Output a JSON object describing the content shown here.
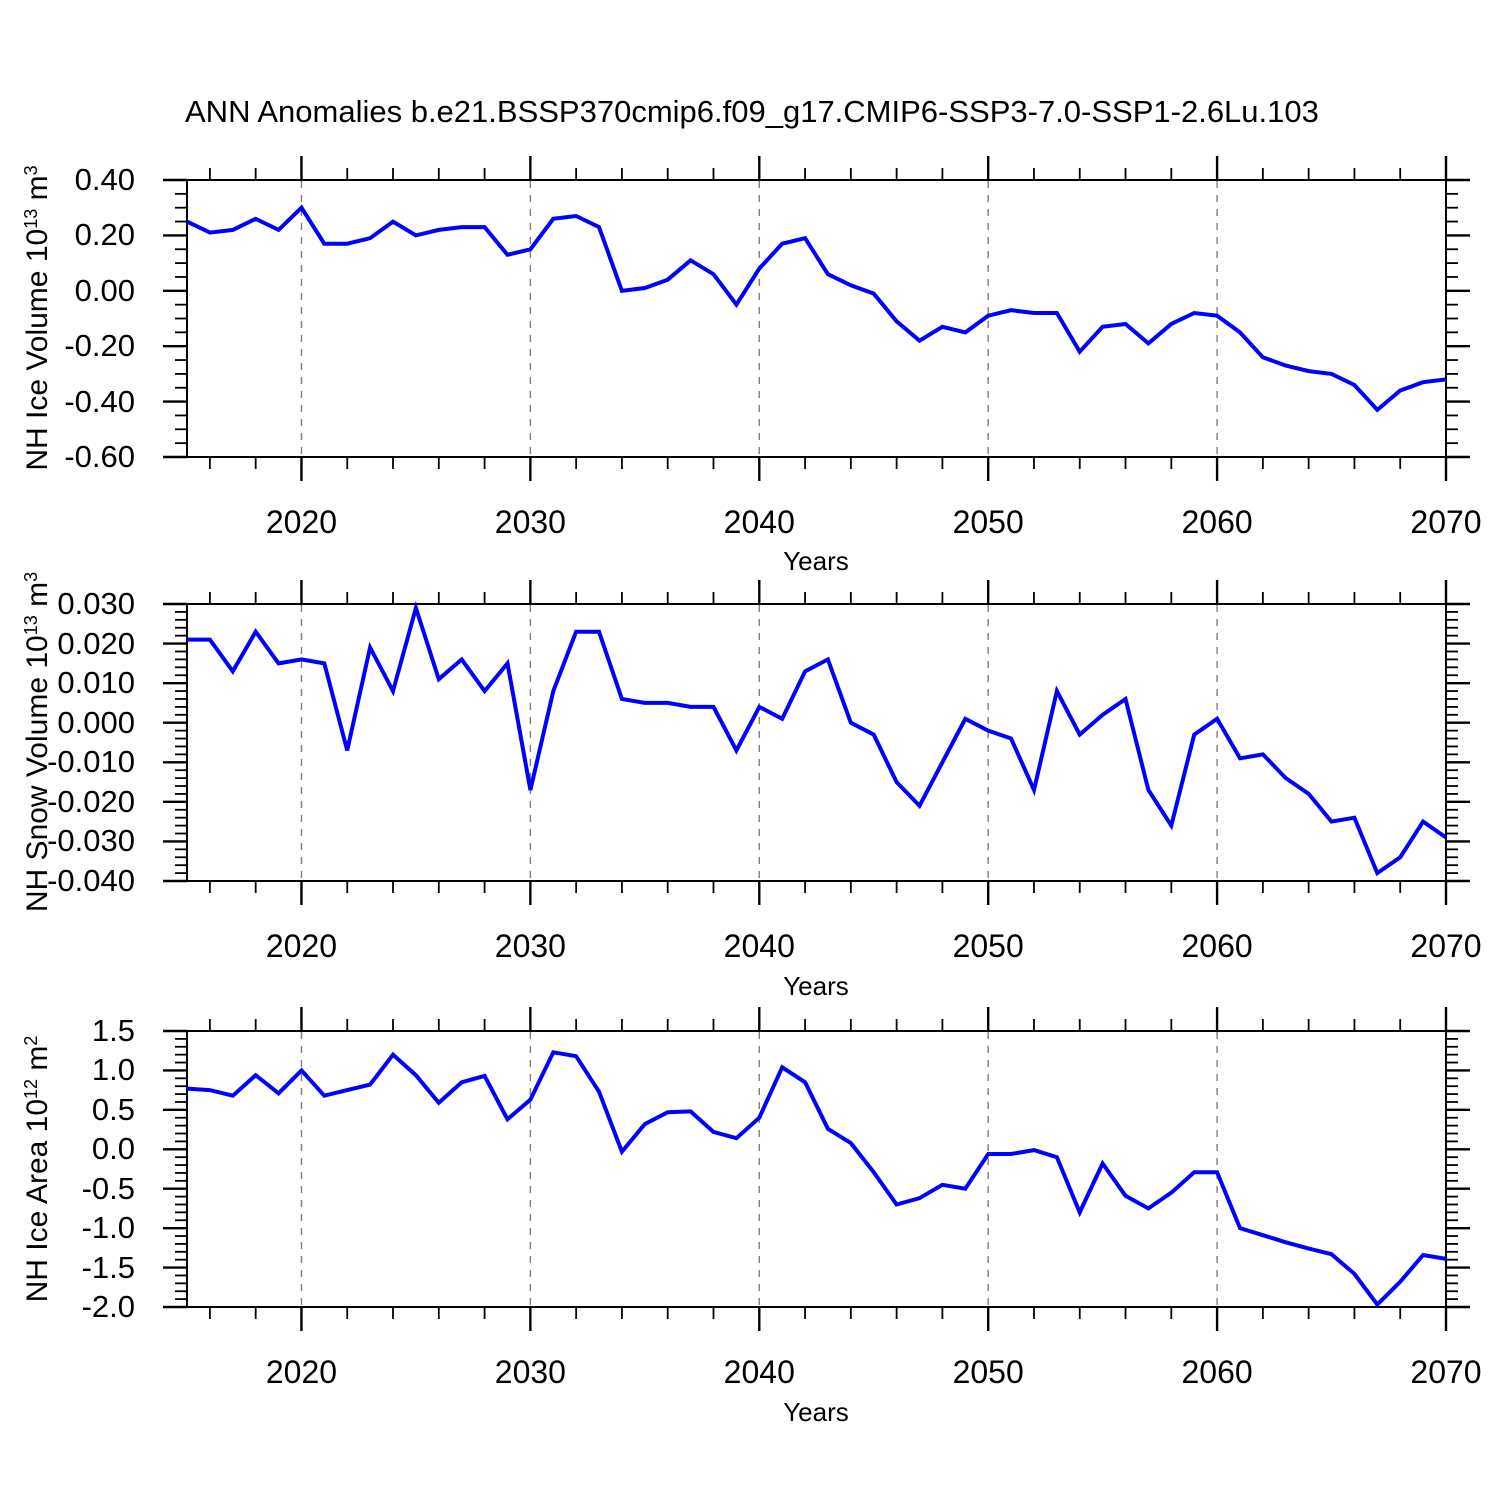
{
  "title": "ANN Anomalies b.e21.BSSP370cmip6.f09_g17.CMIP6-SSP3-7.0-SSP1-2.6Lu.103",
  "line_color": "#0000FF",
  "grid_color": "#7f7f7f",
  "axis_color": "#000000",
  "x_axis": {
    "label": "Years",
    "start": 2015,
    "end": 2070,
    "major_ticks": [
      2020,
      2030,
      2040,
      2050,
      2060,
      2070
    ],
    "minor_step_years": 2,
    "gridline_years": [
      2020,
      2030,
      2040,
      2050,
      2060
    ],
    "years": [
      2015,
      2016,
      2017,
      2018,
      2019,
      2020,
      2021,
      2022,
      2023,
      2024,
      2025,
      2026,
      2027,
      2028,
      2029,
      2030,
      2031,
      2032,
      2033,
      2034,
      2035,
      2036,
      2037,
      2038,
      2039,
      2040,
      2041,
      2042,
      2043,
      2044,
      2045,
      2046,
      2047,
      2048,
      2049,
      2050,
      2051,
      2052,
      2053,
      2054,
      2055,
      2056,
      2057,
      2058,
      2059,
      2060,
      2061,
      2062,
      2063,
      2064,
      2065,
      2066,
      2067,
      2068,
      2069,
      2070
    ]
  },
  "chart_data": [
    {
      "type": "line",
      "panel": "nh-ice-volume",
      "ylabel": {
        "name": "NH Ice Volume",
        "base": "10",
        "exp": "13",
        "unit": "m",
        "unit_exp": "3"
      },
      "ymax": 0.4,
      "ymin": -0.6,
      "ytick_step": 0.2,
      "yminor_step": 0.05,
      "ytick_labels": [
        "0.40",
        "0.20",
        "0.00",
        "-0.20",
        "-0.40",
        "-0.60"
      ],
      "values": [
        0.25,
        0.21,
        0.22,
        0.26,
        0.22,
        0.3,
        0.17,
        0.17,
        0.19,
        0.25,
        0.2,
        0.22,
        0.23,
        0.23,
        0.13,
        0.15,
        0.26,
        0.27,
        0.23,
        0.0,
        0.01,
        0.04,
        0.11,
        0.06,
        -0.05,
        0.08,
        0.17,
        0.19,
        0.06,
        0.02,
        -0.01,
        -0.11,
        -0.18,
        -0.13,
        -0.15,
        -0.09,
        -0.07,
        -0.08,
        -0.08,
        -0.22,
        -0.13,
        -0.12,
        -0.19,
        -0.12,
        -0.08,
        -0.09,
        -0.15,
        -0.24,
        -0.27,
        -0.29,
        -0.3,
        -0.34,
        -0.43,
        -0.36,
        -0.33,
        -0.32
      ]
    },
    {
      "type": "line",
      "panel": "nh-snow-volume",
      "ylabel": {
        "name": "NH Snow Volume",
        "base": "10",
        "exp": "13",
        "unit": "m",
        "unit_exp": "3"
      },
      "ymax": 0.03,
      "ymin": -0.04,
      "ytick_step": 0.01,
      "yminor_step": 0.002,
      "ytick_labels": [
        "0.030",
        "0.020",
        "0.010",
        "0.000",
        "-0.010",
        "-0.020",
        "-0.030",
        "-0.040"
      ],
      "values": [
        0.021,
        0.021,
        0.013,
        0.023,
        0.015,
        0.016,
        0.015,
        -0.007,
        0.019,
        0.008,
        0.029,
        0.011,
        0.016,
        0.008,
        0.015,
        -0.017,
        0.008,
        0.023,
        0.023,
        0.006,
        0.005,
        0.005,
        0.004,
        0.004,
        -0.007,
        0.004,
        0.001,
        0.013,
        0.016,
        0.0,
        -0.003,
        -0.015,
        -0.021,
        -0.01,
        0.001,
        -0.002,
        -0.004,
        -0.017,
        0.008,
        -0.003,
        0.002,
        0.006,
        -0.017,
        -0.026,
        -0.003,
        0.001,
        -0.009,
        -0.008,
        -0.014,
        -0.018,
        -0.025,
        -0.024,
        -0.038,
        -0.034,
        -0.025,
        -0.029
      ]
    },
    {
      "type": "line",
      "panel": "nh-ice-area",
      "ylabel": {
        "name": "NH Ice Area",
        "base": "10",
        "exp": "12",
        "unit": "m",
        "unit_exp": "2"
      },
      "ymax": 1.5,
      "ymin": -2.0,
      "ytick_step": 0.5,
      "yminor_step": 0.1,
      "ytick_labels": [
        "1.5",
        "1.0",
        "0.5",
        "0.0",
        "-0.5",
        "-1.0",
        "-1.5",
        "-2.0"
      ],
      "values": [
        0.77,
        0.75,
        0.68,
        0.94,
        0.71,
        1.0,
        0.68,
        0.75,
        0.82,
        1.2,
        0.94,
        0.59,
        0.85,
        0.93,
        0.38,
        0.63,
        1.23,
        1.18,
        0.73,
        -0.03,
        0.32,
        0.47,
        0.48,
        0.22,
        0.14,
        0.4,
        1.04,
        0.85,
        0.26,
        0.08,
        -0.29,
        -0.7,
        -0.62,
        -0.45,
        -0.5,
        -0.06,
        -0.06,
        -0.01,
        -0.1,
        -0.8,
        -0.18,
        -0.59,
        -0.75,
        -0.55,
        -0.29,
        -0.29,
        -1.0,
        -1.09,
        -1.18,
        -1.26,
        -1.33,
        -1.58,
        -1.97,
        -1.68,
        -1.34,
        -1.39
      ]
    }
  ]
}
